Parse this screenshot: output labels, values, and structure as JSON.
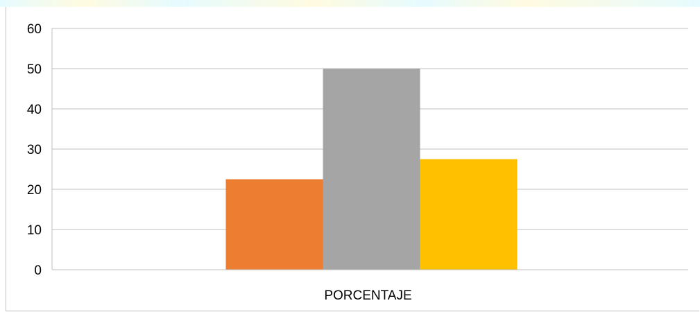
{
  "chart_data": {
    "type": "bar",
    "title": "",
    "xlabel": "",
    "ylabel": "",
    "categories": [
      "PORCENTAJE"
    ],
    "series": [
      {
        "values": [
          22.5
        ],
        "color": "#ED7D31"
      },
      {
        "values": [
          50
        ],
        "color": "#A5A5A5"
      },
      {
        "values": [
          27.5
        ],
        "color": "#FFC000"
      }
    ],
    "ylim": [
      0,
      60
    ],
    "yticks": [
      "0",
      "10",
      "20",
      "30",
      "40",
      "50",
      "60"
    ],
    "grid": true,
    "legend": "none"
  },
  "colors": {
    "gridline": "#bfbfbf",
    "axis": "#bfbfbf",
    "background": "#ffffff"
  }
}
